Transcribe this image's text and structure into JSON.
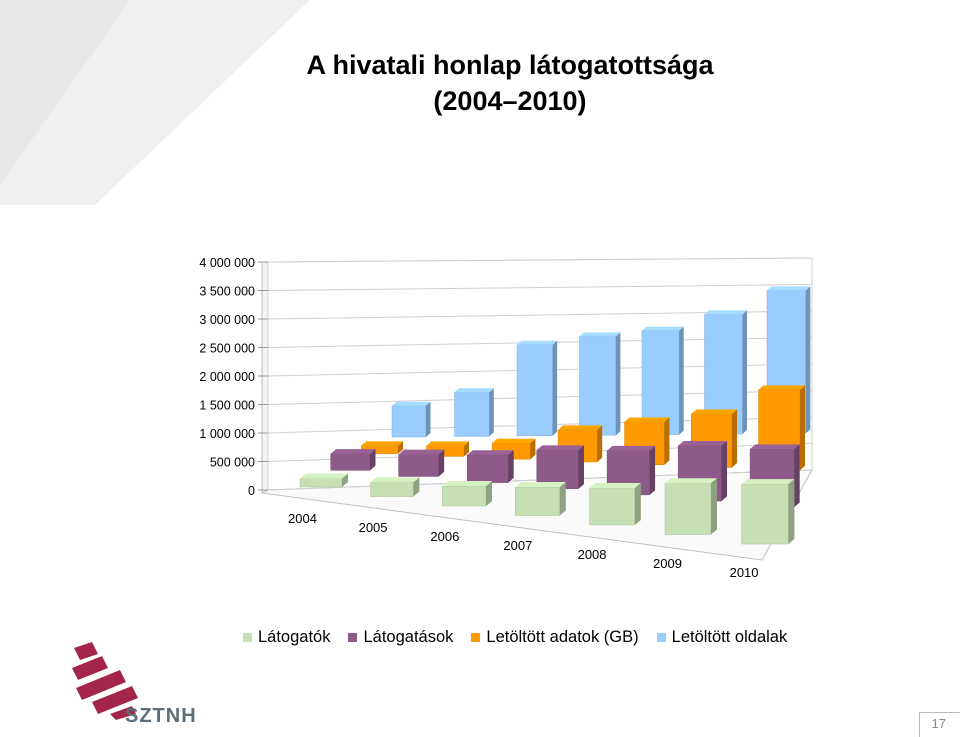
{
  "slide": {
    "title_line1": "A hivatali honlap látogatottsága",
    "title_line2": "(2004–2010)",
    "page_number": "17",
    "logo_text": "SZTNH"
  },
  "chart_data": {
    "type": "bar",
    "title": "A hivatali honlap látogatottsága (2004–2010)",
    "categories": [
      "2004",
      "2005",
      "2006",
      "2007",
      "2008",
      "2009",
      "2010"
    ],
    "y_ticks": [
      "0",
      "500 000",
      "1 000 000",
      "1 500 000",
      "2 000 000",
      "2 500 000",
      "3 000 000",
      "3 500 000",
      "4 000 000"
    ],
    "ylim": [
      0,
      4000000
    ],
    "legend_position": "bottom",
    "series": [
      {
        "name": "Látogatók",
        "color": "#c6e0b4",
        "values": [
          150000,
          250000,
          350000,
          500000,
          650000,
          900000,
          1050000
        ]
      },
      {
        "name": "Látogatások",
        "color": "#8e5a8a",
        "values": [
          300000,
          400000,
          500000,
          700000,
          800000,
          1000000,
          1050000
        ]
      },
      {
        "name": "Letöltött adatok (GB)",
        "color": "#ff9900",
        "values": [
          150000,
          200000,
          300000,
          600000,
          800000,
          1000000,
          1500000
        ]
      },
      {
        "name": "Letöltött oldalak",
        "color": "#99ccff",
        "values": [
          600000,
          850000,
          1750000,
          1900000,
          2000000,
          2300000,
          2750000
        ]
      }
    ]
  }
}
